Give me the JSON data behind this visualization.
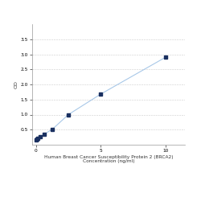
{
  "x": [
    0,
    0.078,
    0.156,
    0.313,
    0.625,
    1.25,
    2.5,
    5,
    10
  ],
  "y": [
    0.152,
    0.178,
    0.21,
    0.265,
    0.35,
    0.51,
    1.0,
    1.68,
    2.9
  ],
  "xlabel_line1": "Human Breast Cancer Susceptibility Protein 2 (BRCA2)",
  "xlabel_line2": "Concentration (ng/ml)",
  "ylabel": "OD",
  "xlim": [
    -0.3,
    11.5
  ],
  "ylim": [
    0.0,
    4.0
  ],
  "yticks": [
    0.5,
    1.0,
    1.5,
    2.0,
    2.5,
    3.0,
    3.5
  ],
  "xticks": [
    0,
    5,
    10
  ],
  "line_color": "#a8c8e8",
  "marker_color": "#1a3060",
  "bg_color": "#ffffff",
  "grid_color": "#cccccc",
  "xlabel_fontsize": 4.2,
  "ylabel_fontsize": 4.5,
  "tick_fontsize": 4.2,
  "marker_size": 2.8,
  "line_width": 0.8
}
